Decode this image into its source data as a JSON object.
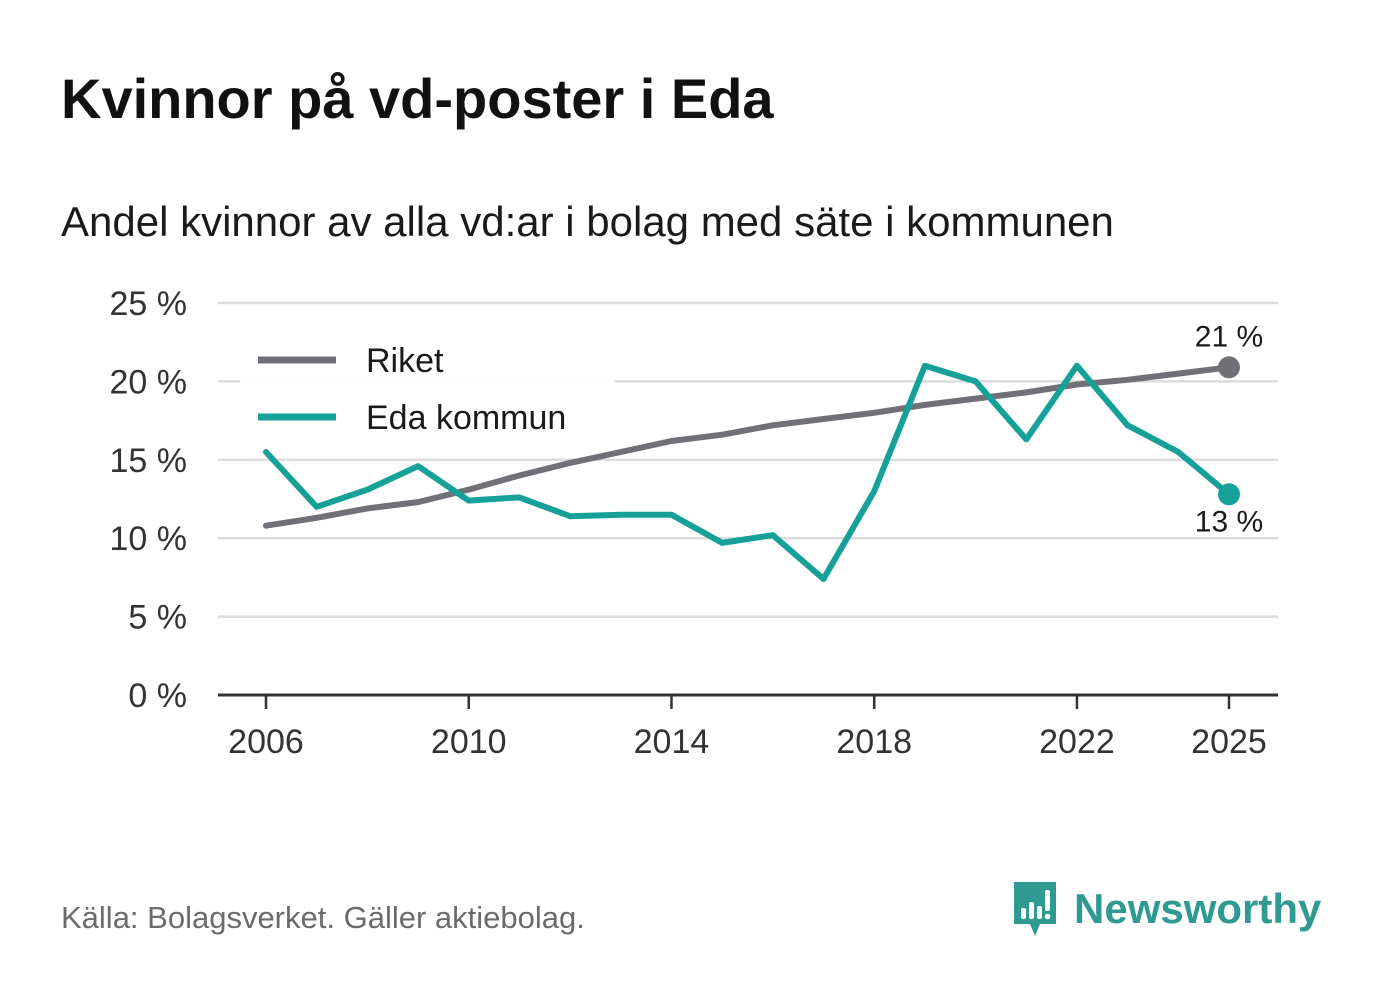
{
  "title": "Kvinnor på vd-poster i Eda",
  "subtitle": "Andel kvinnor av alla vd:ar i bolag med säte i kommunen",
  "source": "Källa: Bolagsverket. Gäller aktiebolag.",
  "brand": {
    "name": "Newsworthy",
    "icon": "newsworthy-logo-icon",
    "color": "#2f9a92"
  },
  "chart_data": {
    "type": "line",
    "title": "Kvinnor på vd-poster i Eda",
    "subtitle": "Andel kvinnor av alla vd:ar i bolag med säte i kommunen",
    "xlabel": "",
    "ylabel": "",
    "x": [
      2006,
      2007,
      2008,
      2009,
      2010,
      2011,
      2012,
      2013,
      2014,
      2015,
      2016,
      2017,
      2018,
      2019,
      2020,
      2021,
      2022,
      2023,
      2024,
      2025
    ],
    "xticks": [
      2006,
      2010,
      2014,
      2018,
      2022,
      2025
    ],
    "xtick_labels": [
      "2006",
      "2010",
      "2014",
      "2018",
      "2022",
      "2025"
    ],
    "ylim": [
      0,
      25
    ],
    "yticks": [
      0,
      5,
      10,
      15,
      20,
      25
    ],
    "ytick_labels": [
      "0 %",
      "5 %",
      "10 %",
      "15 %",
      "20 %",
      "25 %"
    ],
    "grid": true,
    "legend_position": "top-left",
    "series": [
      {
        "name": "Riket",
        "color": "#717076",
        "values": [
          10.8,
          11.3,
          11.9,
          12.3,
          13.1,
          14.0,
          14.8,
          15.5,
          16.2,
          16.6,
          17.2,
          17.6,
          18.0,
          18.5,
          18.9,
          19.3,
          19.8,
          20.1,
          20.5,
          20.9
        ],
        "end_label": "21 %"
      },
      {
        "name": "Eda kommun",
        "color": "#16a198",
        "values": [
          15.5,
          12.0,
          13.1,
          14.6,
          12.4,
          12.6,
          11.4,
          11.5,
          11.5,
          9.7,
          10.2,
          7.4,
          13.0,
          21.0,
          20.0,
          16.3,
          21.0,
          17.2,
          15.5,
          12.8
        ],
        "end_label": "13 %"
      }
    ]
  }
}
